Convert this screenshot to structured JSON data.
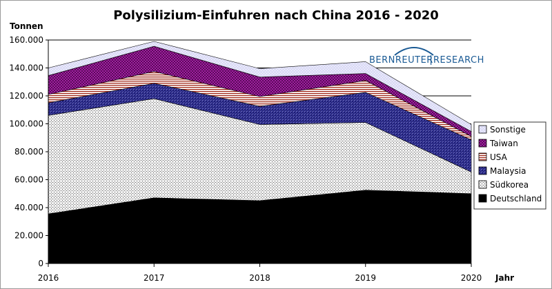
{
  "chart_data": {
    "type": "area",
    "stacked": true,
    "title": "Polysilizium-Einfuhren nach China 2016 - 2020",
    "ylabel": "Tonnen",
    "xlabel": "Jahr",
    "x": [
      2016,
      2017,
      2018,
      2019,
      2020
    ],
    "x_tick_labels": [
      "2016",
      "2017",
      "2018",
      "2019",
      "2020"
    ],
    "ylim": [
      0,
      160000
    ],
    "y_tick_labels": [
      "0",
      "20.000",
      "40.000",
      "60.000",
      "80.000",
      "100.000",
      "120.000",
      "140.000",
      "160.000"
    ],
    "grid": "horizontal",
    "legend_position": "right",
    "series": [
      {
        "name": "Deutschland",
        "values": [
          35500,
          47000,
          45000,
          52500,
          50000
        ],
        "color": "#000000",
        "pattern": "solid"
      },
      {
        "name": "Südkorea",
        "values": [
          70500,
          71000,
          54500,
          48500,
          15500
        ],
        "color": "#c9c9c9",
        "pattern": "dots"
      },
      {
        "name": "Malaysia",
        "values": [
          9000,
          11000,
          13000,
          21500,
          23000
        ],
        "color": "#3c3c9c",
        "pattern": "check"
      },
      {
        "name": "USA",
        "values": [
          6000,
          8500,
          7000,
          8500,
          2500
        ],
        "color": "#b03020",
        "pattern": "hstripes"
      },
      {
        "name": "Taiwan",
        "values": [
          13500,
          18000,
          14000,
          5000,
          3500
        ],
        "color": "#8a1a8a",
        "pattern": "check-purple"
      },
      {
        "name": "Sonstige",
        "values": [
          5500,
          3500,
          6000,
          8500,
          5000
        ],
        "color": "#d8d8f4",
        "pattern": "light"
      }
    ],
    "legend_order": [
      "Sonstige",
      "Taiwan",
      "USA",
      "Malaysia",
      "Südkorea",
      "Deutschland"
    ]
  },
  "logo": {
    "text_a": "BERNREUTER",
    "text_b": "RESEARCH"
  }
}
